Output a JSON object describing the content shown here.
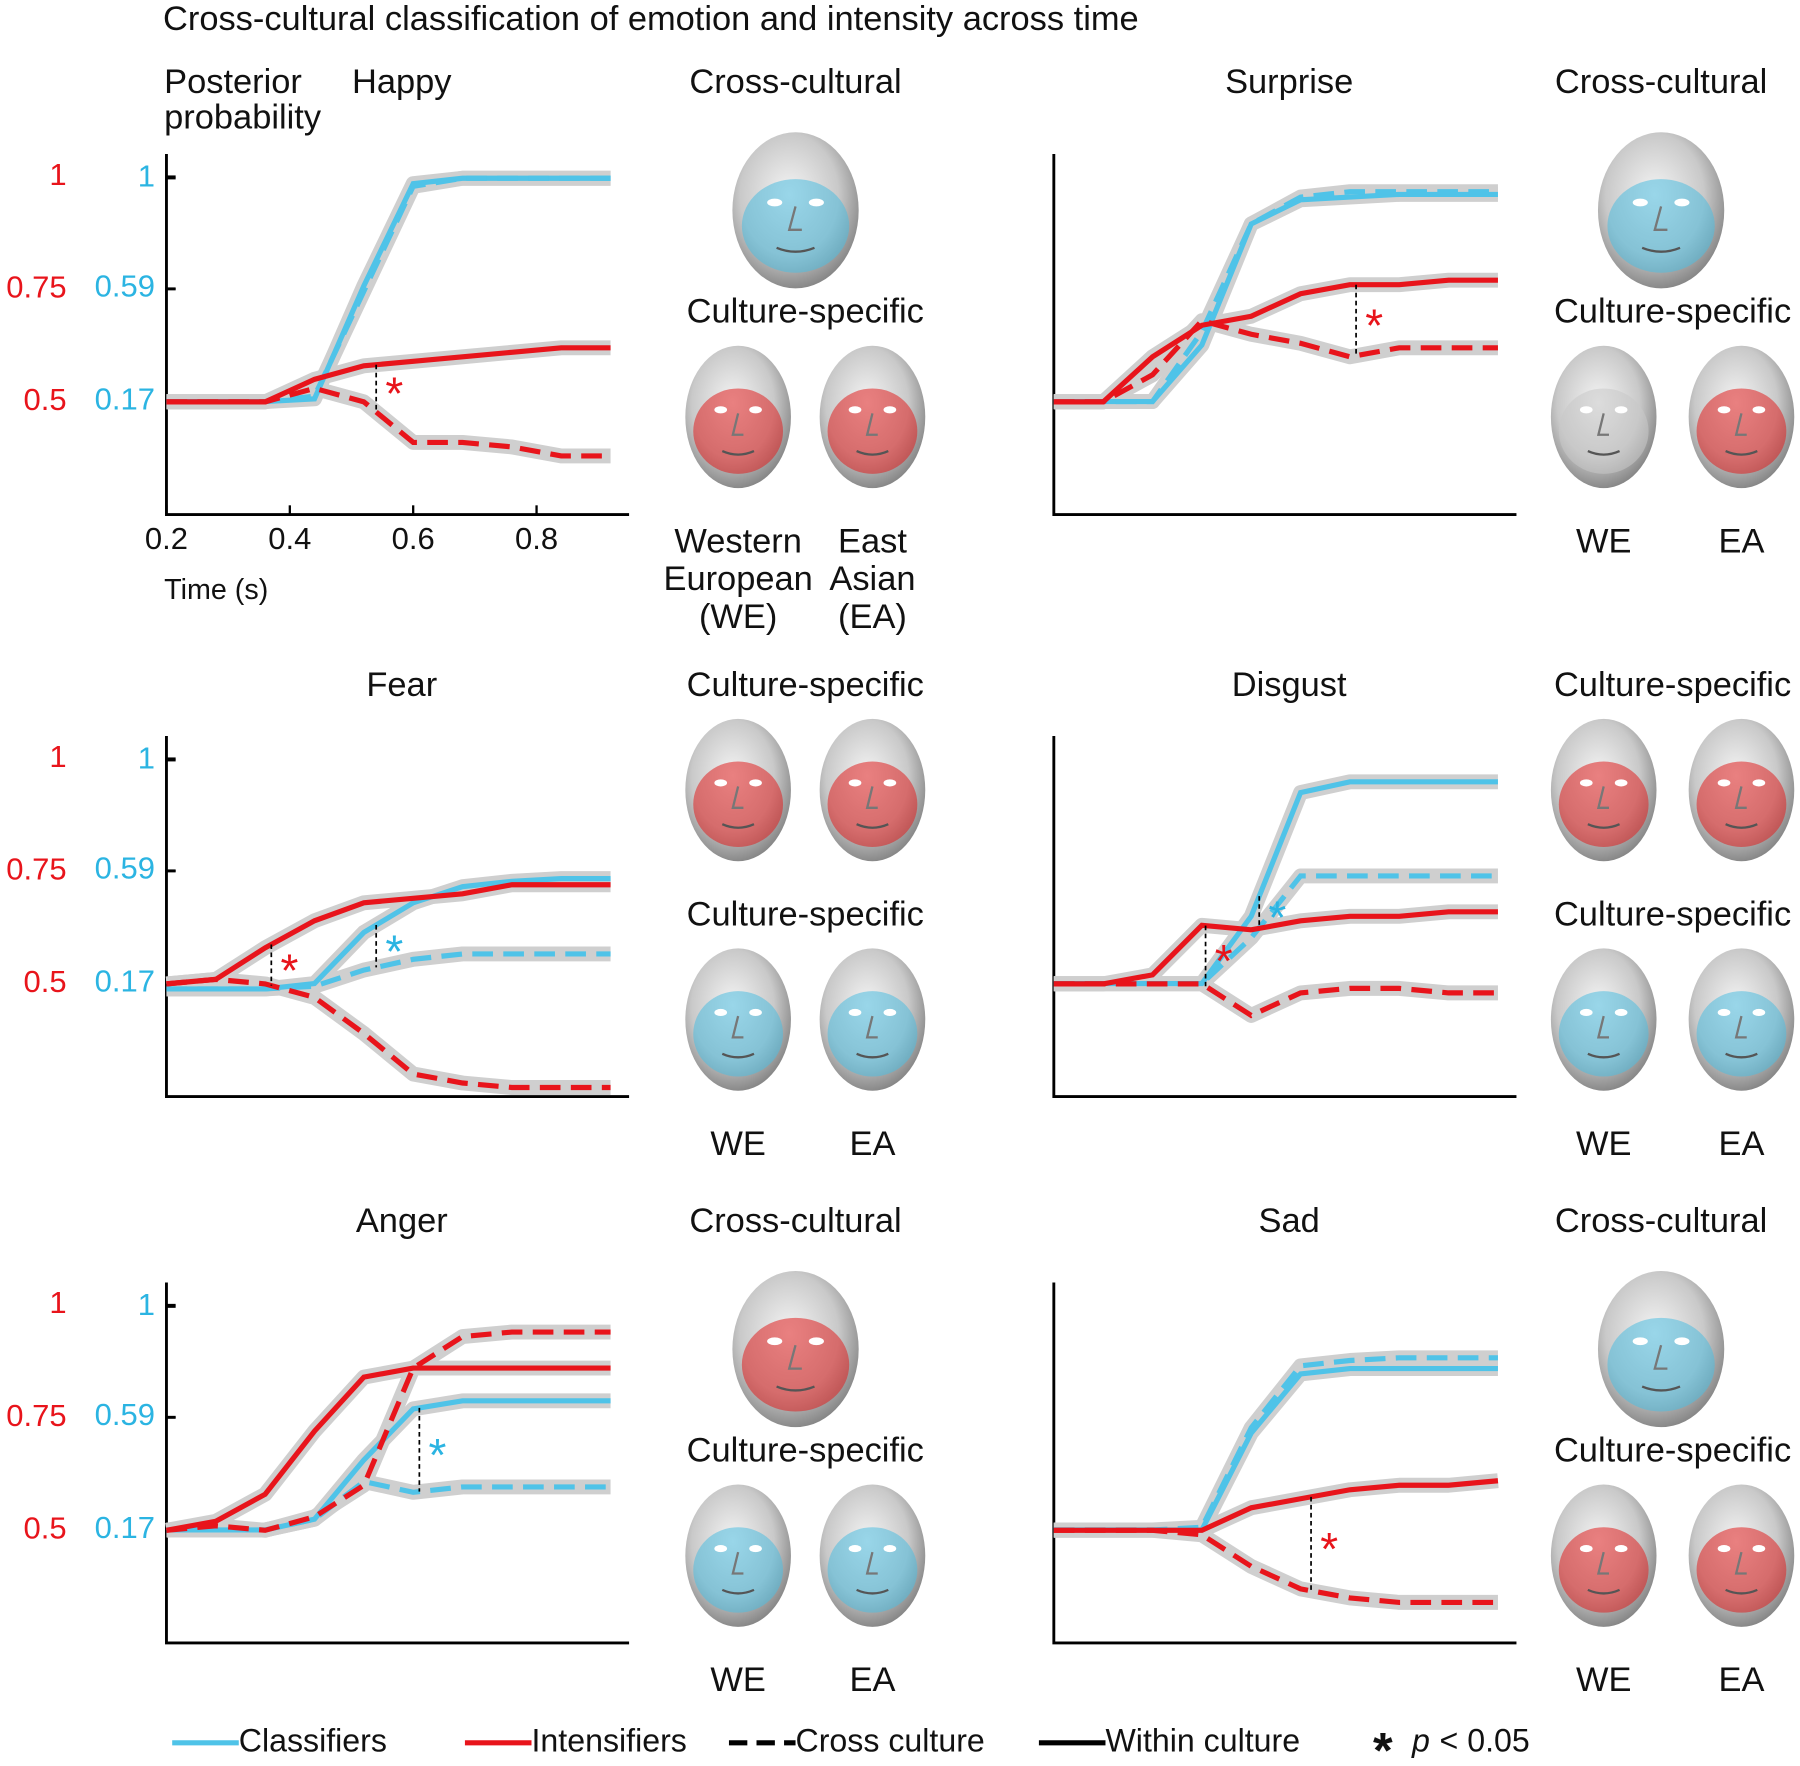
{
  "title": "Cross-cultural classification of emotion and intensity across time",
  "chart_data": [
    {
      "type": "line",
      "title": "Happy",
      "ylabel": [
        "Posterior",
        "probability"
      ],
      "xlabel": "Time (s)",
      "x": [
        0.2,
        0.28,
        0.36,
        0.44,
        0.52,
        0.6,
        0.68,
        0.76,
        0.84,
        0.92
      ],
      "xlim": [
        0.2,
        0.95
      ],
      "xticks": [
        0.2,
        0.4,
        0.6,
        0.8
      ],
      "ylim": [
        0.25,
        1.05
      ],
      "yticks": [
        0.5,
        0.75,
        1
      ],
      "ytick_color": "#e8141b",
      "y2lim": [
        -0.25,
        1.09
      ],
      "y2ticks": [
        0.17,
        0.59,
        1
      ],
      "y2tick_color": "#2bb4e2",
      "series": [
        {
          "color": "#4fc3e8",
          "dash": false,
          "axis": "y2",
          "values": [
            0.17,
            0.17,
            0.17,
            0.18,
            0.6,
            0.98,
            1.0,
            1.0,
            1.0,
            1.0
          ]
        },
        {
          "color": "#4fc3e8",
          "dash": true,
          "axis": "y2",
          "values": [
            0.17,
            0.17,
            0.17,
            0.19,
            0.58,
            0.97,
            1.0,
            1.0,
            1.0,
            1.0
          ]
        },
        {
          "color": "#e8141b",
          "dash": false,
          "axis": "y",
          "values": [
            0.5,
            0.5,
            0.5,
            0.55,
            0.58,
            0.59,
            0.6,
            0.61,
            0.62,
            0.62
          ]
        },
        {
          "color": "#e8141b",
          "dash": true,
          "axis": "y",
          "values": [
            0.5,
            0.5,
            0.5,
            0.53,
            0.5,
            0.41,
            0.41,
            0.4,
            0.38,
            0.38
          ]
        }
      ],
      "annotations": [
        {
          "text": "*",
          "x": 0.54,
          "axis": "y",
          "color": "#e8141b"
        }
      ],
      "faces": [
        {
          "heading": "Cross-cultural",
          "tints": [
            "#4fbde0"
          ]
        },
        {
          "heading": "Culture-specific",
          "tints": [
            "#e02020",
            "#e02020"
          ]
        }
      ],
      "face_labels": [
        [
          "Western",
          "European",
          "(WE)"
        ],
        [
          "East",
          "Asian",
          "(EA)"
        ]
      ]
    },
    {
      "type": "line",
      "title": "Surprise",
      "x": [
        0.2,
        0.28,
        0.36,
        0.44,
        0.52,
        0.6,
        0.68,
        0.76,
        0.84,
        0.92
      ],
      "xlim": [
        0.2,
        0.95
      ],
      "ylim": [
        0.25,
        1.05
      ],
      "y2lim": [
        -0.25,
        1.09
      ],
      "series": [
        {
          "color": "#4fc3e8",
          "dash": false,
          "axis": "y2",
          "values": [
            0.17,
            0.17,
            0.17,
            0.38,
            0.83,
            0.92,
            0.93,
            0.94,
            0.94,
            0.94
          ]
        },
        {
          "color": "#4fc3e8",
          "dash": true,
          "axis": "y2",
          "values": [
            0.17,
            0.17,
            0.17,
            0.43,
            0.83,
            0.93,
            0.95,
            0.95,
            0.95,
            0.95
          ]
        },
        {
          "color": "#e8141b",
          "dash": false,
          "axis": "y",
          "values": [
            0.5,
            0.5,
            0.6,
            0.67,
            0.69,
            0.74,
            0.76,
            0.76,
            0.77,
            0.77
          ]
        },
        {
          "color": "#e8141b",
          "dash": true,
          "axis": "y",
          "values": [
            0.5,
            0.5,
            0.56,
            0.68,
            0.65,
            0.63,
            0.6,
            0.62,
            0.62,
            0.62
          ]
        }
      ],
      "annotations": [
        {
          "text": "*",
          "x": 0.69,
          "axis": "y",
          "color": "#e8141b"
        }
      ],
      "faces": [
        {
          "heading": "Cross-cultural",
          "tints": [
            "#4fbde0"
          ]
        },
        {
          "heading": "Culture-specific",
          "tints": [
            "#c8c8c8",
            "#e02020"
          ]
        }
      ],
      "face_labels": [
        [
          "WE"
        ],
        [
          "EA"
        ]
      ]
    },
    {
      "type": "line",
      "title": "Fear",
      "x": [
        0.2,
        0.28,
        0.36,
        0.44,
        0.52,
        0.6,
        0.68,
        0.76,
        0.84,
        0.92
      ],
      "xlim": [
        0.2,
        0.95
      ],
      "ylim": [
        0.25,
        1.05
      ],
      "yticks": [
        0.5,
        0.75,
        1
      ],
      "ytick_color": "#e8141b",
      "y2lim": [
        -0.25,
        1.09
      ],
      "y2ticks": [
        0.17,
        0.59,
        1
      ],
      "y2tick_color": "#2bb4e2",
      "series": [
        {
          "color": "#4fc3e8",
          "dash": false,
          "axis": "y2",
          "values": [
            0.15,
            0.15,
            0.15,
            0.17,
            0.36,
            0.47,
            0.53,
            0.55,
            0.56,
            0.56
          ]
        },
        {
          "color": "#4fc3e8",
          "dash": true,
          "axis": "y2",
          "values": [
            0.15,
            0.15,
            0.15,
            0.16,
            0.22,
            0.26,
            0.28,
            0.28,
            0.28,
            0.28
          ]
        },
        {
          "color": "#e8141b",
          "dash": false,
          "axis": "y",
          "values": [
            0.5,
            0.51,
            0.58,
            0.64,
            0.68,
            0.69,
            0.7,
            0.72,
            0.72,
            0.72
          ]
        },
        {
          "color": "#e8141b",
          "dash": true,
          "axis": "y",
          "values": [
            0.5,
            0.51,
            0.5,
            0.47,
            0.39,
            0.3,
            0.28,
            0.27,
            0.27,
            0.27
          ]
        }
      ],
      "annotations": [
        {
          "text": "*",
          "x": 0.37,
          "axis": "y",
          "color": "#e8141b"
        },
        {
          "text": "*",
          "x": 0.54,
          "axis": "y2",
          "color": "#2bb4e2"
        }
      ],
      "faces": [
        {
          "heading": "Culture-specific",
          "tints": [
            "#e02020",
            "#e02020"
          ]
        },
        {
          "heading": "Culture-specific",
          "tints": [
            "#4fbde0",
            "#4fbde0"
          ]
        }
      ],
      "face_labels": [
        [
          "WE"
        ],
        [
          "EA"
        ]
      ]
    },
    {
      "type": "line",
      "title": "Disgust",
      "x": [
        0.2,
        0.28,
        0.36,
        0.44,
        0.52,
        0.6,
        0.68,
        0.76,
        0.84,
        0.92
      ],
      "xlim": [
        0.2,
        0.95
      ],
      "ylim": [
        0.25,
        1.05
      ],
      "y2lim": [
        -0.25,
        1.09
      ],
      "series": [
        {
          "color": "#4fc3e8",
          "dash": false,
          "axis": "y2",
          "values": [
            0.17,
            0.17,
            0.17,
            0.17,
            0.42,
            0.88,
            0.92,
            0.92,
            0.92,
            0.92
          ]
        },
        {
          "color": "#4fc3e8",
          "dash": true,
          "axis": "y2",
          "values": [
            0.17,
            0.17,
            0.17,
            0.17,
            0.34,
            0.57,
            0.57,
            0.57,
            0.57,
            0.57
          ]
        },
        {
          "color": "#e8141b",
          "dash": false,
          "axis": "y",
          "values": [
            0.5,
            0.5,
            0.52,
            0.63,
            0.62,
            0.64,
            0.65,
            0.65,
            0.66,
            0.66
          ]
        },
        {
          "color": "#e8141b",
          "dash": true,
          "axis": "y",
          "values": [
            0.5,
            0.5,
            0.5,
            0.5,
            0.43,
            0.48,
            0.49,
            0.49,
            0.48,
            0.48
          ]
        }
      ],
      "annotations": [
        {
          "text": "*",
          "x": 0.446,
          "axis": "y",
          "color": "#e8141b"
        },
        {
          "text": "*",
          "x": 0.533,
          "axis": "y2",
          "color": "#2bb4e2"
        }
      ],
      "faces": [
        {
          "heading": "Culture-specific",
          "tints": [
            "#e02020",
            "#e02020"
          ]
        },
        {
          "heading": "Culture-specific",
          "tints": [
            "#4fbde0",
            "#4fbde0"
          ]
        }
      ],
      "face_labels": [
        [
          "WE"
        ],
        [
          "EA"
        ]
      ]
    },
    {
      "type": "line",
      "title": "Anger",
      "x": [
        0.2,
        0.28,
        0.36,
        0.44,
        0.52,
        0.6,
        0.68,
        0.76,
        0.84,
        0.92
      ],
      "xlim": [
        0.2,
        0.95
      ],
      "ylim": [
        0.25,
        1.05
      ],
      "yticks": [
        0.5,
        0.75,
        1
      ],
      "ytick_color": "#e8141b",
      "y2lim": [
        -0.25,
        1.09
      ],
      "y2ticks": [
        0.17,
        0.59,
        1
      ],
      "y2tick_color": "#2bb4e2",
      "series": [
        {
          "color": "#4fc3e8",
          "dash": false,
          "axis": "y2",
          "values": [
            0.17,
            0.17,
            0.17,
            0.21,
            0.43,
            0.62,
            0.65,
            0.65,
            0.65,
            0.65
          ]
        },
        {
          "color": "#4fc3e8",
          "dash": true,
          "axis": "y2",
          "values": [
            0.17,
            0.17,
            0.17,
            0.21,
            0.35,
            0.31,
            0.33,
            0.33,
            0.33,
            0.33
          ]
        },
        {
          "color": "#e8141b",
          "dash": false,
          "axis": "y",
          "values": [
            0.5,
            0.52,
            0.58,
            0.72,
            0.84,
            0.86,
            0.86,
            0.86,
            0.86,
            0.86
          ]
        },
        {
          "color": "#e8141b",
          "dash": true,
          "axis": "y",
          "values": [
            0.5,
            0.51,
            0.5,
            0.53,
            0.6,
            0.86,
            0.93,
            0.94,
            0.94,
            0.94
          ]
        }
      ],
      "annotations": [
        {
          "text": "*",
          "x": 0.61,
          "axis": "y2",
          "color": "#2bb4e2"
        }
      ],
      "faces": [
        {
          "heading": "Cross-cultural",
          "tints": [
            "#e02020"
          ]
        },
        {
          "heading": "Culture-specific",
          "tints": [
            "#4fbde0",
            "#4fbde0"
          ]
        }
      ],
      "face_labels": [
        [
          "WE"
        ],
        [
          "EA"
        ]
      ]
    },
    {
      "type": "line",
      "title": "Sad",
      "x": [
        0.2,
        0.28,
        0.36,
        0.44,
        0.52,
        0.6,
        0.68,
        0.76,
        0.84,
        0.92
      ],
      "xlim": [
        0.2,
        0.95
      ],
      "ylim": [
        0.25,
        1.05
      ],
      "y2lim": [
        -0.25,
        1.09
      ],
      "series": [
        {
          "color": "#4fc3e8",
          "dash": false,
          "axis": "y2",
          "values": [
            0.17,
            0.17,
            0.17,
            0.17,
            0.53,
            0.75,
            0.77,
            0.77,
            0.77,
            0.77
          ]
        },
        {
          "color": "#4fc3e8",
          "dash": true,
          "axis": "y2",
          "values": [
            0.17,
            0.17,
            0.17,
            0.18,
            0.55,
            0.78,
            0.8,
            0.81,
            0.81,
            0.81
          ]
        },
        {
          "color": "#e8141b",
          "dash": false,
          "axis": "y",
          "values": [
            0.5,
            0.5,
            0.5,
            0.5,
            0.55,
            0.57,
            0.59,
            0.6,
            0.6,
            0.61
          ]
        },
        {
          "color": "#e8141b",
          "dash": true,
          "axis": "y",
          "values": [
            0.5,
            0.5,
            0.5,
            0.49,
            0.42,
            0.37,
            0.35,
            0.34,
            0.34,
            0.34
          ]
        }
      ],
      "annotations": [
        {
          "text": "*",
          "x": 0.617,
          "axis": "y",
          "color": "#e8141b"
        }
      ],
      "faces": [
        {
          "heading": "Cross-cultural",
          "tints": [
            "#4fbde0"
          ]
        },
        {
          "heading": "Culture-specific",
          "tints": [
            "#e02020",
            "#e02020"
          ]
        }
      ],
      "face_labels": [
        [
          "WE"
        ],
        [
          "EA"
        ]
      ]
    }
  ],
  "legend": [
    {
      "label": "Classifiers",
      "color": "#4fc3e8",
      "dash": false
    },
    {
      "label": "Intensifiers",
      "color": "#e8141b",
      "dash": false
    },
    {
      "label": "Cross culture",
      "color": "#000000",
      "dash": true
    },
    {
      "label": "Within culture",
      "color": "#000000",
      "dash": false
    }
  ],
  "significance": {
    "symbol": "*",
    "variable": "p",
    "text": "< 0.05"
  }
}
